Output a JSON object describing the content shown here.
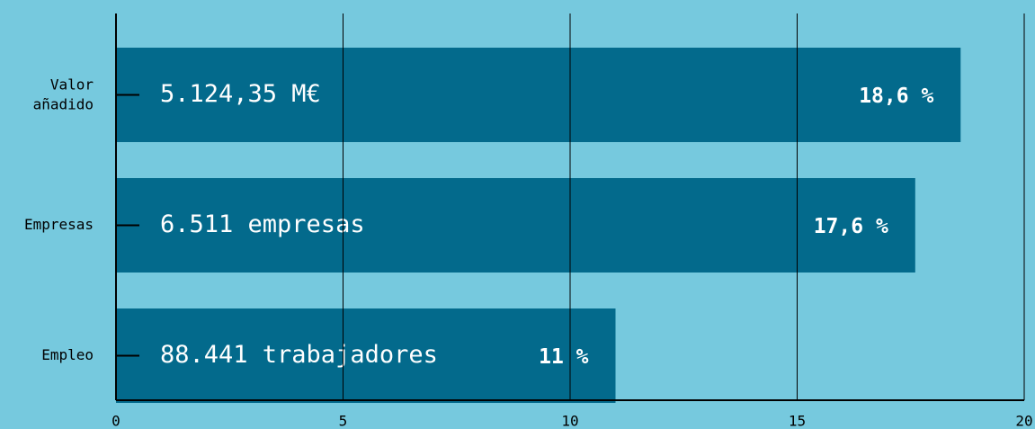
{
  "chart_data": {
    "type": "barh",
    "categories": [
      "Valor añadido",
      "Empresas",
      "Empleo"
    ],
    "values": [
      18.6,
      17.6,
      11
    ],
    "value_labels": [
      "18,6 %",
      "17,6 %",
      "11 %"
    ],
    "annotations": [
      "5.124,35 M€",
      "6.511 empresas",
      "88.441 trabajadores"
    ],
    "color": "#036a8c",
    "xlim": [
      0,
      20
    ],
    "xticks": [
      0,
      5,
      10,
      15,
      20
    ],
    "grid": true
  }
}
